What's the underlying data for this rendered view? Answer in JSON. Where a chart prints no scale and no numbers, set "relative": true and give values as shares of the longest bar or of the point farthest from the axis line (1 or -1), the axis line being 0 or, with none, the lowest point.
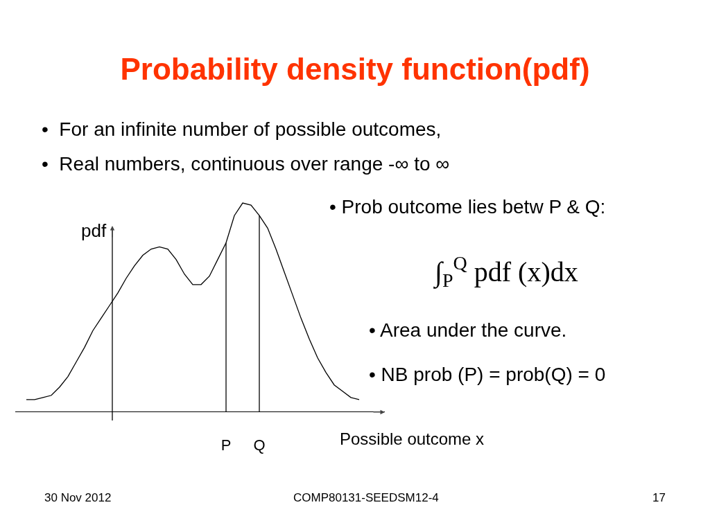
{
  "chart_data": {
    "type": "line",
    "title": "Probability density function(pdf)",
    "xlabel": "Possible outcome x",
    "ylabel": "pdf",
    "relative": true,
    "color": "#000000",
    "marker": "none",
    "categories": [
      null,
      null,
      null,
      null,
      null,
      null,
      null,
      null,
      null,
      null,
      null,
      null,
      null,
      null,
      null,
      null,
      null,
      null,
      null,
      null,
      null,
      null,
      null,
      null,
      "P",
      null,
      null,
      null,
      "Q",
      null,
      null,
      null,
      null,
      null,
      null,
      null,
      null,
      null,
      null,
      null,
      null
    ],
    "values": [
      0.06,
      0.06,
      0.07,
      0.08,
      0.12,
      0.17,
      0.24,
      0.31,
      0.39,
      0.45,
      0.51,
      0.57,
      0.64,
      0.7,
      0.75,
      0.78,
      0.79,
      0.78,
      0.73,
      0.66,
      0.61,
      0.61,
      0.65,
      0.73,
      0.81,
      0.94,
      1.0,
      0.99,
      0.94,
      0.88,
      0.78,
      0.67,
      0.56,
      0.45,
      0.35,
      0.26,
      0.19,
      0.13,
      0.1,
      0.07,
      0.06
    ],
    "ref_lines": [
      {
        "axis": "x",
        "value": "P"
      },
      {
        "axis": "x",
        "value": "Q"
      }
    ],
    "annotations": [
      "•  For an infinite number of possible outcomes,",
      "•  Real numbers, continuous over range -∞ to ∞",
      "• Prob outcome lies betw P & Q:",
      "∫$_{P}$$^{Q}$ pdf (x)dx",
      "• Area under the curve.",
      "• NB prob (P) = prob(Q) = 0",
      "30 Nov 2012",
      "COMP80131-SEEDSM12-4",
      "17"
    ]
  }
}
